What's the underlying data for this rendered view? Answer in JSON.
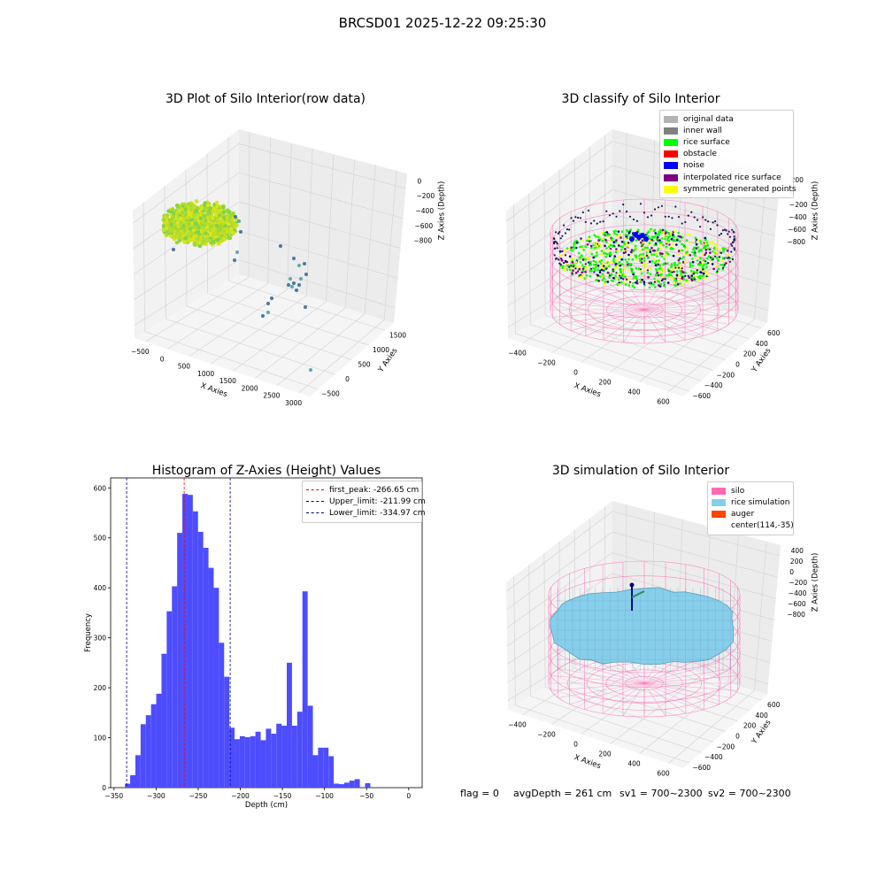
{
  "suptitle": "BRCSD01 2025-12-22 09:25:30",
  "status": {
    "flag": "flag = 0",
    "avg_depth": "avgDepth = 261 cm",
    "sv1": "sv1 = 700~2300",
    "sv2": "sv2 = 700~2300"
  },
  "colors": {
    "original_data": "#b3b3b3",
    "inner_wall": "#808080",
    "rice_surface": "#00ff00",
    "obstacle": "#ff0000",
    "noise": "#0000ff",
    "interpolated": "#800080",
    "symmetric": "#ffff00",
    "silo": "#ff69b4",
    "rice_sim": "#87ceeb",
    "auger": "#ff4500",
    "hist_bar": "#4d4dff",
    "peak_line": "#ff0000",
    "limit_line": "#00008b"
  },
  "chart_data": [
    {
      "type": "scatter",
      "title": "3D Plot of Silo Interior(row data)",
      "xlabel": "X Axies",
      "ylabel": "Y Axies",
      "zlabel": "Z Axies (Depth)",
      "x_ticks": [
        "−500",
        "0",
        "500",
        "1000",
        "1500",
        "2000",
        "2500",
        "3000"
      ],
      "y_ticks": [
        "−500",
        "0",
        "500",
        "1000",
        "1500"
      ],
      "z_ticks": [
        "−800",
        "−600",
        "−400",
        "−200",
        "0"
      ]
    },
    {
      "type": "scatter",
      "title": "3D classify of Silo Interior",
      "xlabel": "X Axies",
      "ylabel": "Y Axies",
      "zlabel": "Z Axies (Depth)",
      "x_ticks": [
        "−400",
        "−200",
        "0",
        "200",
        "400",
        "600"
      ],
      "y_ticks": [
        "−600",
        "−400",
        "−200",
        "0",
        "200",
        "400",
        "600"
      ],
      "z_ticks": [
        "−800",
        "−600",
        "−400",
        "−200",
        "0",
        "200"
      ],
      "legend": {
        "placement": "top-right",
        "entries": [
          "original data",
          "inner wall",
          "rice surface",
          "obstacle",
          "noise",
          "interpolated rice surface",
          "symmetric generated points"
        ]
      }
    },
    {
      "type": "bar",
      "title": "Histogram of Z-Axies (Height) Values",
      "xlabel": "Depth (cm)",
      "ylabel": "Frequency",
      "xlim": [
        -350,
        0
      ],
      "ylim": [
        0,
        620
      ],
      "x_ticks": [
        -350,
        -300,
        -250,
        -200,
        -150,
        -100,
        -50,
        0
      ],
      "y_ticks": [
        0,
        100,
        200,
        300,
        400,
        500,
        600
      ],
      "bin_start": -337,
      "bin_width": 6.2,
      "values": [
        8,
        25,
        65,
        127,
        145,
        167,
        188,
        268,
        353,
        403,
        510,
        588,
        586,
        553,
        512,
        480,
        440,
        400,
        290,
        222,
        120,
        97,
        103,
        101,
        103,
        112,
        95,
        118,
        108,
        128,
        124,
        250,
        124,
        152,
        393,
        164,
        65,
        80,
        80,
        63,
        8,
        7,
        10,
        14,
        17,
        0,
        9
      ],
      "lines": [
        {
          "label": "first_peak: -266.65 cm",
          "x": -266.65,
          "style": "peak"
        },
        {
          "label": "Upper_limit: -211.99 cm",
          "x": -211.99,
          "style": "limit"
        },
        {
          "label": "Lower_limit: -334.97 cm",
          "x": -334.97,
          "style": "limit"
        }
      ],
      "legend": {
        "placement": "top-right"
      }
    },
    {
      "type": "scatter",
      "title": "3D simulation of Silo Interior",
      "xlabel": "X Axies",
      "ylabel": "Y Axies",
      "zlabel": "Z Axies (Depth)",
      "x_ticks": [
        "−400",
        "−200",
        "0",
        "200",
        "400",
        "600"
      ],
      "y_ticks": [
        "−600",
        "−400",
        "−200",
        "0",
        "200",
        "400",
        "600"
      ],
      "z_ticks": [
        "−800",
        "−600",
        "−400",
        "−200",
        "0",
        "200",
        "400"
      ],
      "legend": {
        "placement": "top-right",
        "entries": [
          "silo",
          "rice simulation",
          "auger",
          "center(114,-35)"
        ]
      }
    }
  ]
}
